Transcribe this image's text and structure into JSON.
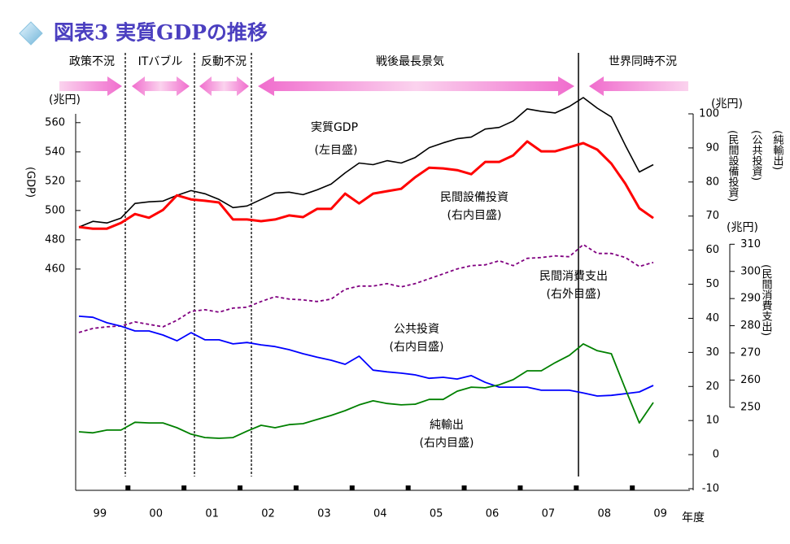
{
  "chart_data": {
    "type": "line",
    "title": "図表3 実質GDPの推移",
    "periods": [
      "政策不況",
      "ITバブル",
      "反動不況",
      "戦後最長景気",
      "世界同時不況"
    ],
    "xlabel": "年度",
    "categories": [
      "99",
      null,
      null,
      null,
      "00",
      null,
      null,
      null,
      "01",
      null,
      null,
      null,
      "02",
      null,
      null,
      null,
      "03",
      null,
      null,
      null,
      "04",
      null,
      null,
      null,
      "05",
      null,
      null,
      null,
      "06",
      null,
      null,
      null,
      "07",
      null,
      null,
      null,
      "08",
      null,
      null,
      null,
      "09",
      null
    ],
    "ylabel": "(GDP)",
    "y_unit": "(兆円)",
    "ylim": [
      310,
      566
    ],
    "yticks": [
      460,
      480,
      500,
      520,
      540,
      560
    ],
    "y2label": [
      "(民間設備投資)",
      "(公共投資)",
      "(純輸出)"
    ],
    "y2_unit": "(兆円)",
    "y2lim": [
      -10,
      100
    ],
    "y2ticks": [
      -10,
      0,
      10,
      20,
      30,
      40,
      50,
      60,
      70,
      80,
      90,
      100
    ],
    "y3label": "(民間消費支出)",
    "y3_unit": "(兆円)",
    "y3lim": [
      220,
      358
    ],
    "y3ticks": [
      250,
      260,
      270,
      280,
      290,
      300,
      310
    ],
    "series": [
      {
        "name": "実質GDP",
        "note": "(左目盛)",
        "axis": "y",
        "color": "#000000",
        "width": 1.6,
        "values": [
          488.7,
          492.6,
          491.5,
          494.8,
          504.8,
          505.9,
          506.4,
          510.3,
          513.6,
          511.4,
          507.5,
          502.0,
          503.1,
          507.5,
          511.9,
          512.5,
          510.8,
          514.1,
          518.0,
          525.7,
          532.4,
          531.3,
          534.0,
          532.4,
          536.2,
          542.9,
          546.2,
          549.0,
          550.1,
          555.6,
          556.7,
          561.1,
          569.4,
          567.7,
          566.6,
          571.0,
          577.1,
          569.9,
          563.9,
          544.5,
          526.3,
          531.3
        ]
      },
      {
        "name": "民間設備投資",
        "note": "(右内目盛)",
        "axis": "y2",
        "color": "#ff0000",
        "width": 3,
        "values": [
          66.8,
          66.3,
          66.3,
          68.0,
          70.6,
          69.5,
          71.8,
          76.1,
          74.9,
          74.5,
          74.0,
          69.0,
          69.0,
          68.5,
          69.0,
          70.2,
          69.7,
          72.1,
          72.1,
          76.6,
          73.7,
          76.6,
          77.3,
          78.0,
          81.4,
          84.2,
          84.0,
          83.5,
          82.3,
          85.9,
          85.9,
          87.8,
          91.9,
          89.0,
          89.0,
          90.2,
          91.4,
          89.5,
          85.4,
          79.5,
          72.3,
          69.4
        ]
      },
      {
        "name": "民間消費支出",
        "note": "(右外目盛)",
        "axis": "y3",
        "color": "#800080",
        "width": 1.8,
        "dashed": true,
        "values": [
          277.5,
          279.0,
          279.6,
          279.9,
          281.4,
          280.5,
          279.6,
          282.0,
          285.3,
          285.9,
          285.0,
          286.5,
          286.8,
          288.9,
          290.7,
          289.8,
          289.5,
          288.9,
          289.8,
          293.4,
          294.6,
          294.6,
          295.5,
          294.3,
          295.5,
          297.3,
          299.1,
          300.9,
          302.1,
          302.4,
          303.9,
          302.1,
          304.8,
          305.1,
          305.7,
          305.4,
          309.9,
          306.6,
          306.6,
          305.1,
          301.8,
          303.3
        ]
      },
      {
        "name": "公共投資",
        "note": "(右内目盛)",
        "axis": "y2",
        "color": "#0000ff",
        "width": 1.8,
        "values": [
          40.6,
          40.3,
          38.7,
          37.7,
          36.3,
          36.3,
          35.1,
          33.4,
          35.8,
          33.7,
          33.7,
          32.5,
          32.9,
          32.2,
          31.7,
          30.8,
          29.6,
          28.6,
          27.7,
          26.5,
          28.9,
          24.8,
          24.3,
          23.9,
          23.4,
          22.4,
          22.7,
          22.2,
          23.2,
          21.2,
          19.8,
          19.8,
          19.8,
          18.9,
          18.9,
          18.9,
          18.1,
          17.2,
          17.4,
          17.9,
          18.4,
          20.3
        ]
      },
      {
        "name": "純輸出",
        "note": "(右内目盛)",
        "axis": "y2",
        "color": "#008000",
        "width": 1.8,
        "values": [
          6.7,
          6.4,
          7.2,
          7.2,
          9.5,
          9.3,
          9.3,
          7.9,
          6.0,
          5.0,
          4.8,
          5.0,
          6.9,
          8.6,
          7.9,
          8.8,
          9.1,
          10.3,
          11.5,
          12.9,
          14.6,
          15.8,
          15.0,
          14.6,
          14.8,
          16.2,
          16.2,
          18.6,
          19.8,
          19.6,
          20.5,
          22.0,
          24.6,
          24.6,
          27.0,
          29.1,
          32.5,
          30.5,
          29.6,
          19.3,
          9.3,
          15.3
        ]
      }
    ]
  }
}
